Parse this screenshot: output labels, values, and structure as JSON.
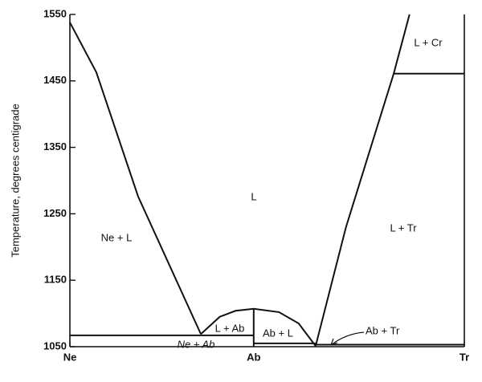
{
  "chart_data": {
    "type": "phase-diagram",
    "ylabel": "Temperature, degrees centigrade",
    "xlim": [
      0,
      1
    ],
    "ylim": [
      1050,
      1550
    ],
    "xticks": [
      {
        "value": 0,
        "label": "Ne"
      },
      {
        "value": 0.466,
        "label": "Ab"
      },
      {
        "value": 1,
        "label": "Tr"
      }
    ],
    "yticks": [
      1050,
      1150,
      1250,
      1350,
      1450,
      1550
    ],
    "color": "#111111",
    "series": [
      {
        "x": [
          0,
          0.067,
          0.173,
          0.332
        ],
        "values": [
          1538,
          1463,
          1276,
          1069
        ]
      },
      {
        "x": [
          0.332,
          0.38,
          0.42,
          0.466,
          0.53,
          0.58,
          0.623
        ],
        "values": [
          1069,
          1095,
          1104,
          1107,
          1102,
          1085,
          1051
        ]
      },
      {
        "x": [
          0.623,
          0.7,
          0.821,
          0.861
        ],
        "values": [
          1051,
          1230,
          1461,
          1550
        ]
      },
      {
        "x": [
          0,
          0.466
        ],
        "values": [
          1067,
          1067
        ]
      },
      {
        "x": [
          0.466,
          0.623
        ],
        "values": [
          1055,
          1055
        ]
      },
      {
        "x": [
          0.623,
          1
        ],
        "values": [
          1053,
          1053
        ]
      },
      {
        "x": [
          0.466,
          0.466
        ],
        "values": [
          1107,
          1050
        ]
      },
      {
        "x": [
          0.821,
          1
        ],
        "values": [
          1461,
          1461
        ]
      }
    ],
    "regions": [
      "L",
      "Ne + L",
      "L + Tr",
      "L + Cr",
      "L + Ab",
      "Ab + L",
      "Ne + Ab",
      "Ab + Tr"
    ]
  }
}
